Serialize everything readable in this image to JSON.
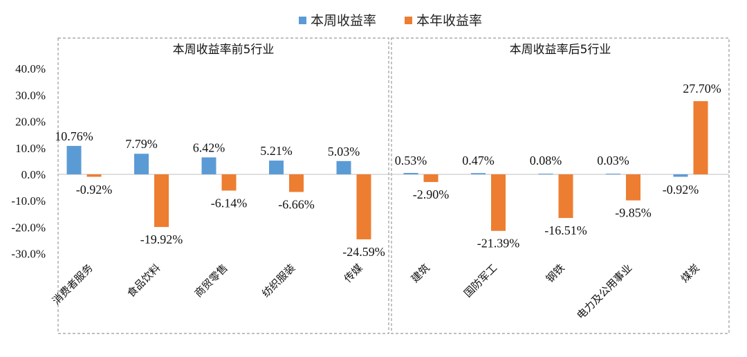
{
  "legend": {
    "items": [
      {
        "label": "本周收益率",
        "color": "#5B9BD5"
      },
      {
        "label": "本年收益率",
        "color": "#ED7D31"
      }
    ]
  },
  "chart_data": {
    "type": "bar",
    "ylim": [
      -30,
      40
    ],
    "yticks": [
      "40.0%",
      "30.0%",
      "20.0%",
      "10.0%",
      "0.0%",
      "-10.0%",
      "-20.0%",
      "-30.0%"
    ],
    "ytick_values": [
      40,
      30,
      20,
      10,
      0,
      -10,
      -20,
      -30
    ],
    "grid": false,
    "legend_position": "top-center",
    "series": [
      {
        "name": "本周收益率",
        "color": "#5B9BD5"
      },
      {
        "name": "本年收益率",
        "color": "#ED7D31"
      }
    ],
    "panels": [
      {
        "title": "本周收益率前5行业",
        "categories": [
          "消费者服务",
          "食品饮料",
          "商贸零售",
          "纺织服装",
          "传媒"
        ],
        "weekly": [
          10.76,
          7.79,
          6.42,
          5.21,
          5.03
        ],
        "yearly": [
          -0.92,
          -19.92,
          -6.14,
          -6.66,
          -24.59
        ],
        "weekly_labels": [
          "10.76%",
          "7.79%",
          "6.42%",
          "5.21%",
          "5.03%"
        ],
        "yearly_labels": [
          "-0.92%",
          "-19.92%",
          "-6.14%",
          "-6.66%",
          "-24.59%"
        ]
      },
      {
        "title": "本周收益率后5行业",
        "categories": [
          "建筑",
          "国防军工",
          "钢铁",
          "电力及公用事业",
          "煤炭"
        ],
        "weekly": [
          0.53,
          0.47,
          0.08,
          0.03,
          -0.92
        ],
        "yearly": [
          -2.9,
          -21.39,
          -16.51,
          -9.85,
          27.7
        ],
        "weekly_labels": [
          "0.53%",
          "0.47%",
          "0.08%",
          "0.03%",
          "-0.92%"
        ],
        "yearly_labels": [
          "-2.90%",
          "-21.39%",
          "-16.51%",
          "-9.85%",
          "27.70%"
        ]
      }
    ]
  }
}
